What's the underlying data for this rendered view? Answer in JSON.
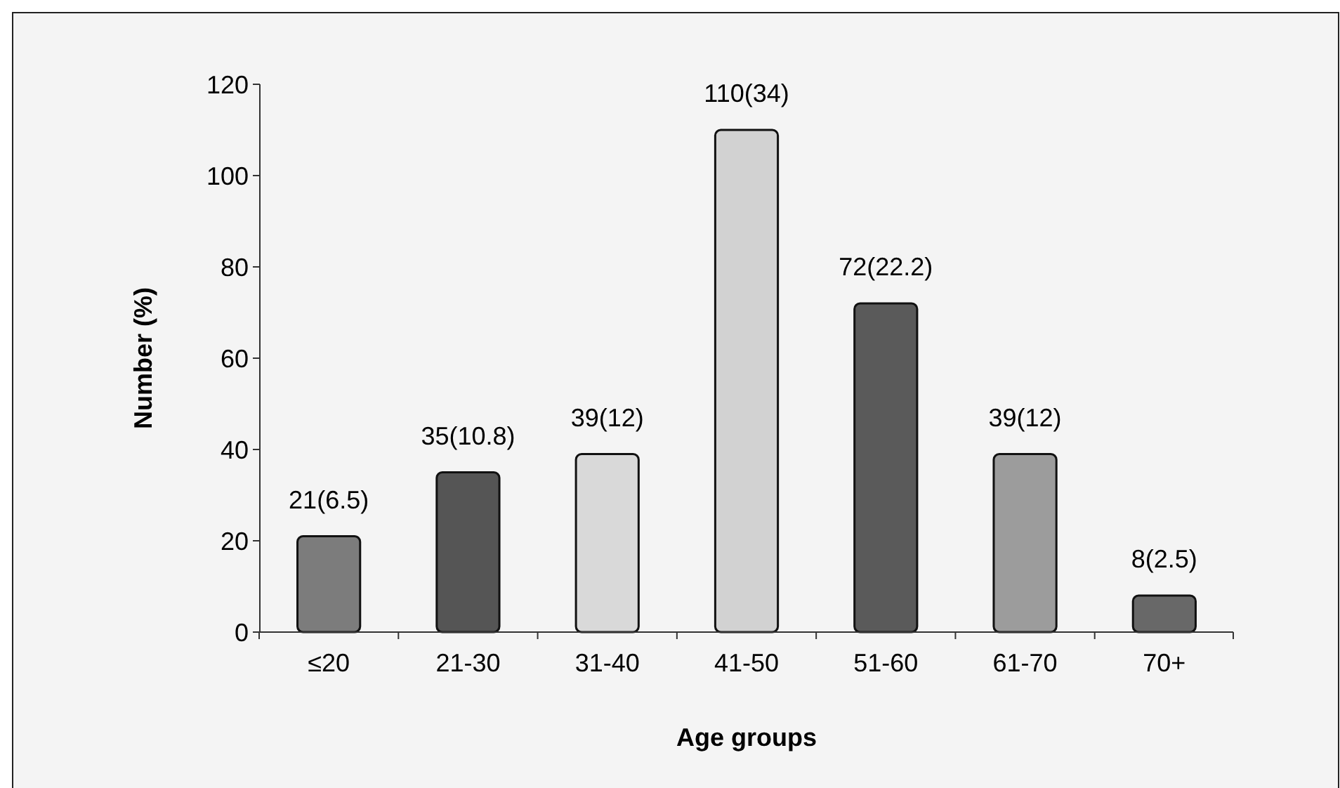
{
  "chart_data": {
    "type": "bar",
    "xlabel": "Age groups",
    "ylabel": "Number (%)",
    "categories": [
      "≤20",
      "21-30",
      "31-40",
      "41-50",
      "51-60",
      "61-70",
      "70+"
    ],
    "values": [
      21,
      35,
      39,
      110,
      72,
      39,
      8
    ],
    "colors": [
      "#7c7c7c",
      "#555555",
      "#d9d9d9",
      "#d2d2d2",
      "#5a5a5a",
      "#9c9c9c",
      "#686868"
    ],
    "value_labels": [
      "21(6.5)",
      "35(10.8)",
      "39(12)",
      "110(34)",
      "72(22.2)",
      "39(12)",
      "8(2.5)"
    ],
    "ylim": [
      0,
      120
    ],
    "yticks": [
      0,
      20,
      40,
      60,
      80,
      100,
      120
    ],
    "grid": false
  }
}
